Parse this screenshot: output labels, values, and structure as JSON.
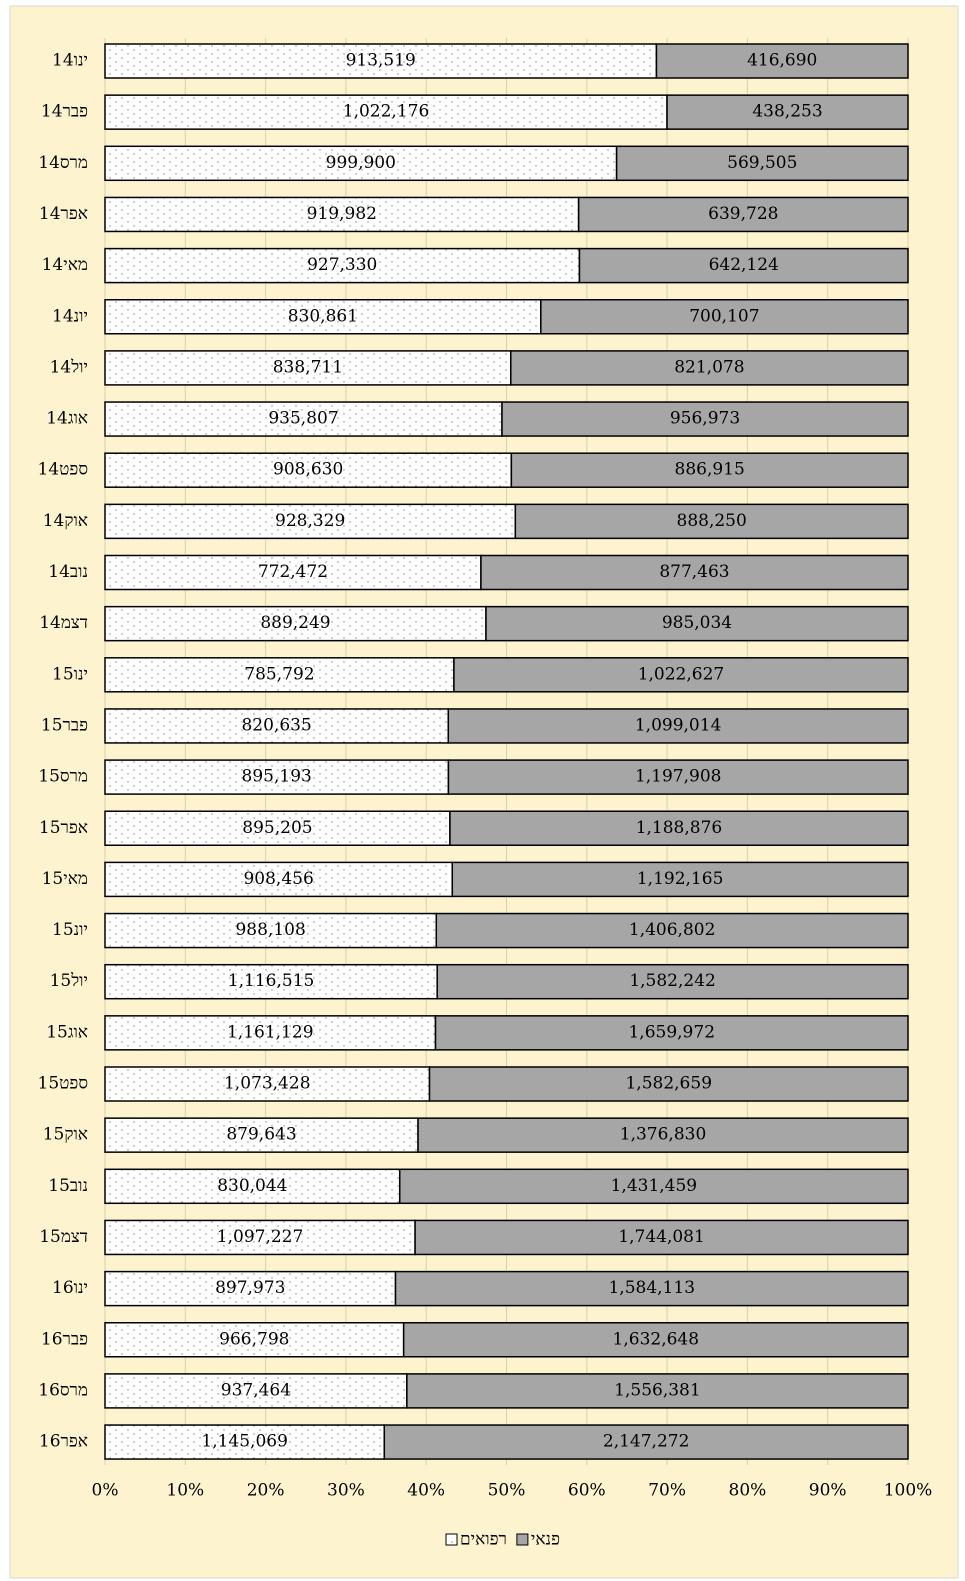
{
  "chart_data": {
    "type": "stacked_bar_100",
    "categories": [
      "ינו14",
      "פבר14",
      "מרס14",
      "אפר14",
      "מאי14",
      "יונ14",
      "יול14",
      "אוג14",
      "ספט14",
      "אוק14",
      "נוב14",
      "דצמ14",
      "ינו15",
      "פבר15",
      "מרס15",
      "אפר15",
      "מאי15",
      "יונ15",
      "יול15",
      "אוג15",
      "ספט15",
      "אוק15",
      "נוב15",
      "דצמ15",
      "ינו16",
      "פבר16",
      "מרס16",
      "אפר16"
    ],
    "series": [
      {
        "name": "רפואים",
        "color": "#ffffff",
        "values": [
          913519,
          1022176,
          999900,
          919982,
          927330,
          830861,
          838711,
          935807,
          908630,
          928329,
          772472,
          889249,
          785792,
          820635,
          895193,
          895205,
          908456,
          988108,
          1116515,
          1161129,
          1073428,
          879643,
          830044,
          1097227,
          897973,
          966798,
          937464,
          1145069
        ],
        "value_labels": [
          "913,519",
          "1,022,176",
          "999,900",
          "919,982",
          "927,330",
          "830,861",
          "838,711",
          "935,807",
          "908,630",
          "928,329",
          "772,472",
          "889,249",
          "785,792",
          "820,635",
          "895,193",
          "895,205",
          "908,456",
          "988,108",
          "1,116,515",
          "1,161,129",
          "1,073,428",
          "879,643",
          "830,044",
          "1,097,227",
          "897,973",
          "966,798",
          "937,464",
          "1,145,069"
        ]
      },
      {
        "name": "פנאי",
        "color": "#a6a6a6",
        "values": [
          416690,
          438253,
          569505,
          639728,
          642124,
          700107,
          821078,
          956973,
          886915,
          888250,
          877463,
          985034,
          1022627,
          1099014,
          1197908,
          1188876,
          1192165,
          1406802,
          1582242,
          1659972,
          1582659,
          1376830,
          1431459,
          1744081,
          1584113,
          1632648,
          1556381,
          2147272
        ],
        "value_labels": [
          "416,690",
          "438,253",
          "569,505",
          "639,728",
          "642,124",
          "700,107",
          "821,078",
          "956,973",
          "886,915",
          "888,250",
          "877,463",
          "985,034",
          "1,022,627",
          "1,099,014",
          "1,197,908",
          "1,188,876",
          "1,192,165",
          "1,406,802",
          "1,582,242",
          "1,659,972",
          "1,582,659",
          "1,376,830",
          "1,431,459",
          "1,744,081",
          "1,584,113",
          "1,632,648",
          "1,556,381",
          "2,147,272"
        ]
      }
    ],
    "xlim": [
      0,
      100
    ],
    "xticks": [
      {
        "value": 0,
        "label": "0%"
      },
      {
        "value": 10,
        "label": "10%"
      },
      {
        "value": 20,
        "label": "20%"
      },
      {
        "value": 30,
        "label": "30%"
      },
      {
        "value": 40,
        "label": "40%"
      },
      {
        "value": 50,
        "label": "50%"
      },
      {
        "value": 60,
        "label": "60%"
      },
      {
        "value": 70,
        "label": "70%"
      },
      {
        "value": 80,
        "label": "80%"
      },
      {
        "value": 90,
        "label": "90%"
      },
      {
        "value": 100,
        "label": "100%"
      }
    ],
    "grid": true
  }
}
